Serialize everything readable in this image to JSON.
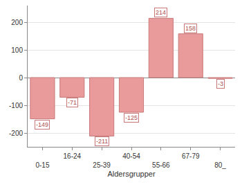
{
  "chart_data": {
    "type": "bar",
    "x_label": "Aldersgrupper",
    "categories": [
      "0-15",
      "16-24",
      "25-39",
      "40-54",
      "55-66",
      "67-79",
      "80_"
    ],
    "values": [
      -149,
      -71,
      -211,
      -125,
      214,
      158,
      -3
    ],
    "color": "#e99a9b",
    "ylim": [
      -250,
      260
    ],
    "yticks": [
      -200,
      -100,
      0,
      100,
      200
    ],
    "grid": true,
    "data_labels": true
  }
}
